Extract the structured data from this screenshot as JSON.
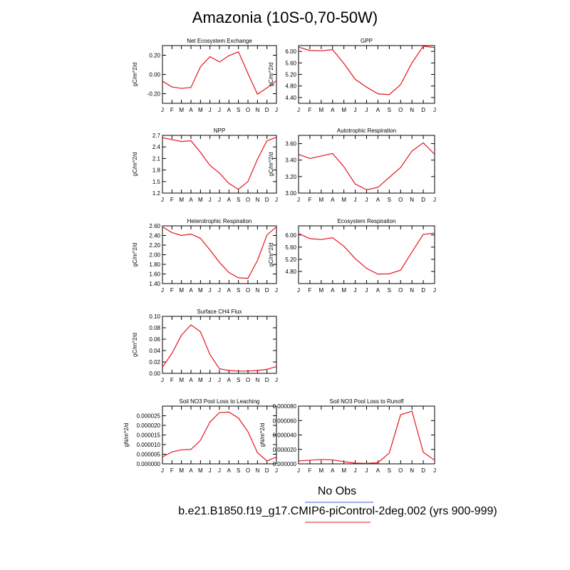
{
  "title": "Amazonia (10S-0,70-50W)",
  "legend": {
    "obs_label": "No Obs",
    "obs_color": "#4a5bd6",
    "model_label": "b.e21.B1850.f19_g17.CMIP6-piControl-2deg.002 (yrs 900-999)",
    "model_color": "#e8141c"
  },
  "chart_data": [
    {
      "type": "line",
      "title": "Net Ecosystem Exchange",
      "ylabel": "gC/m^2/d",
      "x": [
        "J",
        "F",
        "M",
        "A",
        "M",
        "J",
        "J",
        "A",
        "S",
        "O",
        "N",
        "D",
        "J"
      ],
      "ylim": [
        -0.3,
        0.3
      ],
      "yticks": [
        "0.20",
        "0.00",
        "-0.20"
      ],
      "ytick_values": [
        0.2,
        0.0,
        -0.2
      ],
      "series": [
        {
          "values": [
            -0.07,
            -0.13,
            -0.145,
            -0.135,
            0.08,
            0.185,
            0.13,
            0.195,
            0.235,
            0.01,
            -0.205,
            -0.14,
            -0.065
          ]
        }
      ]
    },
    {
      "type": "line",
      "title": "GPP",
      "ylabel": "gC/m^2/d",
      "x": [
        "J",
        "F",
        "M",
        "A",
        "M",
        "J",
        "J",
        "A",
        "S",
        "O",
        "N",
        "D",
        "J"
      ],
      "ylim": [
        4.2,
        6.2
      ],
      "yticks": [
        "6.00",
        "5.60",
        "5.20",
        "4.80",
        "4.40"
      ],
      "ytick_values": [
        6.0,
        5.6,
        5.2,
        4.8,
        4.4
      ],
      "series": [
        {
          "values": [
            6.15,
            6.03,
            6.02,
            6.06,
            5.58,
            5.03,
            4.76,
            4.53,
            4.5,
            4.85,
            5.6,
            6.18,
            6.13
          ]
        }
      ]
    },
    {
      "type": "line",
      "title": "NPP",
      "ylabel": "gC/m^2/d",
      "x": [
        "J",
        "F",
        "M",
        "A",
        "M",
        "J",
        "J",
        "A",
        "S",
        "O",
        "N",
        "D",
        "J"
      ],
      "ylim": [
        1.2,
        2.7
      ],
      "yticks": [
        "2.7",
        "2.4",
        "2.1",
        "1.8",
        "1.5",
        "1.2"
      ],
      "ytick_values": [
        2.7,
        2.4,
        2.1,
        1.8,
        1.5,
        1.2
      ],
      "series": [
        {
          "values": [
            2.64,
            2.59,
            2.54,
            2.56,
            2.26,
            1.92,
            1.72,
            1.45,
            1.3,
            1.5,
            2.08,
            2.56,
            2.65
          ]
        }
      ]
    },
    {
      "type": "line",
      "title": "Autotrophic Respiration",
      "ylabel": "gC/m^2/d",
      "x": [
        "J",
        "F",
        "M",
        "A",
        "M",
        "J",
        "J",
        "A",
        "S",
        "O",
        "N",
        "D",
        "J"
      ],
      "ylim": [
        3.0,
        3.7
      ],
      "yticks": [
        "3.60",
        "3.40",
        "3.20",
        "3.00"
      ],
      "ytick_values": [
        3.6,
        3.4,
        3.2,
        3.0
      ],
      "series": [
        {
          "values": [
            3.47,
            3.42,
            3.45,
            3.48,
            3.32,
            3.11,
            3.04,
            3.07,
            3.19,
            3.31,
            3.51,
            3.61,
            3.47
          ]
        }
      ]
    },
    {
      "type": "line",
      "title": "Heterotrophic Respiration",
      "ylabel": "gC/m^2/d",
      "x": [
        "J",
        "F",
        "M",
        "A",
        "M",
        "J",
        "J",
        "A",
        "S",
        "O",
        "N",
        "D",
        "J"
      ],
      "ylim": [
        1.4,
        2.6
      ],
      "yticks": [
        "2.60",
        "2.40",
        "2.20",
        "2.00",
        "1.80",
        "1.60",
        "1.40"
      ],
      "ytick_values": [
        2.6,
        2.4,
        2.2,
        2.0,
        1.8,
        1.6,
        1.4
      ],
      "series": [
        {
          "values": [
            2.58,
            2.46,
            2.4,
            2.43,
            2.34,
            2.1,
            1.84,
            1.63,
            1.52,
            1.51,
            1.88,
            2.41,
            2.58
          ]
        }
      ]
    },
    {
      "type": "line",
      "title": "Ecosystem Respiration",
      "ylabel": "gC/m^2/d",
      "x": [
        "J",
        "F",
        "M",
        "A",
        "M",
        "J",
        "J",
        "A",
        "S",
        "O",
        "N",
        "D",
        "J"
      ],
      "ylim": [
        4.4,
        6.3
      ],
      "yticks": [
        "6.00",
        "5.60",
        "5.20",
        "4.80"
      ],
      "ytick_values": [
        6.0,
        5.6,
        5.2,
        4.8
      ],
      "series": [
        {
          "values": [
            6.05,
            5.88,
            5.85,
            5.91,
            5.63,
            5.22,
            4.9,
            4.71,
            4.72,
            4.84,
            5.44,
            6.02,
            6.06
          ]
        }
      ]
    },
    {
      "type": "line",
      "title": "Surface CH4 Flux",
      "ylabel": "gC/m^2/d",
      "x": [
        "J",
        "F",
        "M",
        "A",
        "M",
        "J",
        "J",
        "A",
        "S",
        "O",
        "N",
        "D",
        "J"
      ],
      "ylim": [
        0.0,
        0.1
      ],
      "yticks": [
        "0.10",
        "0.08",
        "0.06",
        "0.04",
        "0.02",
        "0.00"
      ],
      "ytick_values": [
        0.1,
        0.08,
        0.06,
        0.04,
        0.02,
        0.0
      ],
      "series": [
        {
          "values": [
            0.011,
            0.035,
            0.067,
            0.085,
            0.073,
            0.033,
            0.008,
            0.005,
            0.004,
            0.004,
            0.005,
            0.007,
            0.012
          ]
        }
      ]
    },
    {
      "type": "line",
      "title": "Soil NO3 Pool Loss to Leaching",
      "ylabel": "gN/m^2/d",
      "x": [
        "J",
        "F",
        "M",
        "A",
        "M",
        "J",
        "J",
        "A",
        "S",
        "O",
        "N",
        "D",
        "J"
      ],
      "ylim": [
        0.0,
        3e-05
      ],
      "yticks": [
        "0.000025",
        "0.000020",
        "0.000015",
        "0.000010",
        "0.000005",
        "0.000000"
      ],
      "ytick_values": [
        2.5e-05,
        2e-05,
        1.5e-05,
        1e-05,
        5e-06,
        0.0
      ],
      "series": [
        {
          "values": [
            3.6e-06,
            6.2e-06,
            7.3e-06,
            7.5e-06,
            1.22e-05,
            2.17e-05,
            2.67e-05,
            2.69e-05,
            2.38e-05,
            1.67e-05,
            5.8e-06,
            1.5e-06,
            3.5e-06
          ]
        }
      ]
    },
    {
      "type": "line",
      "title": "Soil NO3 Pool Loss to Runoff",
      "ylabel": "gN/m^2/d",
      "x": [
        "J",
        "F",
        "M",
        "A",
        "M",
        "J",
        "J",
        "A",
        "S",
        "O",
        "N",
        "D",
        "J"
      ],
      "ylim": [
        0.0,
        8e-05
      ],
      "yticks": [
        "0.000080",
        "0.000060",
        "0.000040",
        "0.000020",
        "0.000000"
      ],
      "ytick_values": [
        8e-05,
        6e-05,
        4e-05,
        2e-05,
        0.0
      ],
      "series": [
        {
          "values": [
            4e-06,
            5e-06,
            6e-06,
            5.5e-06,
            3e-06,
            1e-06,
            7e-07,
            1.5e-06,
            1.5e-05,
            6.8e-05,
            7.3e-05,
            1.6e-05,
            5e-06
          ]
        }
      ]
    }
  ]
}
